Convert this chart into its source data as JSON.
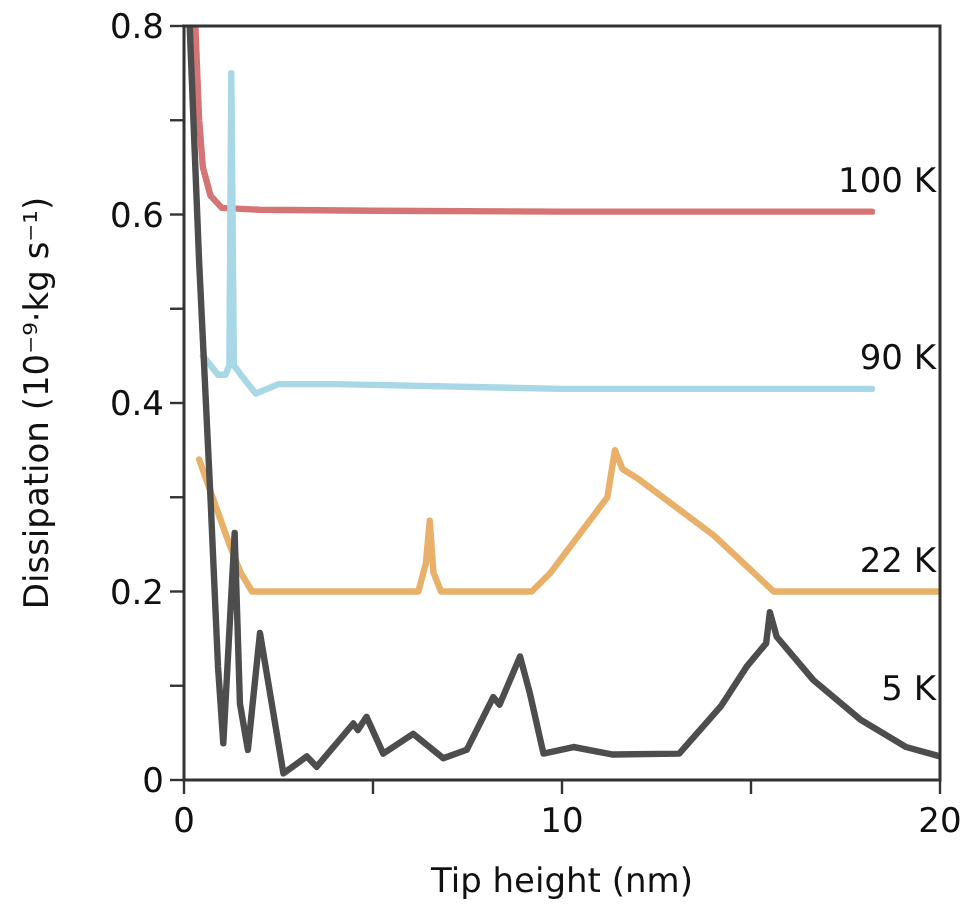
{
  "chart_data": {
    "type": "line",
    "xlabel": "Tip height (nm)",
    "ylabel": "Dissipation (10⁻⁹·kg s⁻¹)",
    "xlim": [
      0,
      20
    ],
    "xticks": [
      0,
      {
        "value": 5,
        "label": null
      },
      10,
      {
        "value": 15,
        "label": null
      },
      20
    ],
    "ylim": [
      0,
      0.8
    ],
    "yticks": [
      0,
      {
        "value": 0.1,
        "label": null
      },
      0.2,
      {
        "value": 0.3,
        "label": null
      },
      0.4,
      {
        "value": 0.5,
        "label": null
      },
      0.6,
      {
        "value": 0.7,
        "label": null
      },
      0.8
    ],
    "grid": false,
    "marker": "none",
    "line_style": "solid",
    "series": [
      {
        "name": "100 K",
        "color": "#d47474",
        "x": [
          0.3,
          0.4,
          0.5,
          0.7,
          1,
          2,
          5,
          10,
          18.2
        ],
        "values": [
          0.8,
          0.7,
          0.65,
          0.62,
          0.607,
          0.605,
          0.604,
          0.603,
          0.603
        ]
      },
      {
        "name": "90 K",
        "color": "#a8d8e6",
        "x": [
          0.5,
          0.7,
          0.9,
          1.1,
          1.2,
          1.25,
          1.32,
          1.5,
          1.9,
          2.5,
          4,
          10,
          18.2
        ],
        "values": [
          0.45,
          0.44,
          0.43,
          0.43,
          0.44,
          0.75,
          0.44,
          0.43,
          0.41,
          0.42,
          0.42,
          0.415,
          0.415
        ]
      },
      {
        "name": "22 K",
        "color": "#e8b068",
        "x": [
          0.4,
          1.2,
          1.5,
          1.8,
          6.2,
          6.4,
          6.5,
          6.6,
          6.8,
          9.2,
          9.7,
          11.2,
          11.4,
          11.6,
          12,
          14,
          15.6,
          20
        ],
        "values": [
          0.34,
          0.25,
          0.22,
          0.2,
          0.2,
          0.23,
          0.275,
          0.22,
          0.2,
          0.2,
          0.22,
          0.3,
          0.35,
          0.33,
          0.32,
          0.26,
          0.2,
          0.2
        ]
      },
      {
        "name": "5 K",
        "color": "#4d4d4d",
        "x": [
          0.15,
          0.4,
          0.7,
          0.9,
          1.04,
          1.34,
          1.48,
          1.69,
          2.01,
          2.63,
          3.25,
          3.51,
          4.48,
          4.6,
          4.83,
          5.27,
          6.06,
          6.86,
          7.48,
          8.18,
          8.35,
          8.89,
          9.15,
          9.51,
          10.3,
          11.35,
          13.1,
          14.2,
          14.88,
          15.4,
          15.5,
          15.68,
          16.65,
          17.9,
          19.1,
          20
        ],
        "values": [
          0.8,
          0.55,
          0.3,
          0.12,
          0.039,
          0.262,
          0.081,
          0.032,
          0.156,
          0.007,
          0.025,
          0.014,
          0.06,
          0.053,
          0.067,
          0.028,
          0.049,
          0.023,
          0.032,
          0.088,
          0.08,
          0.131,
          0.092,
          0.028,
          0.035,
          0.027,
          0.028,
          0.078,
          0.12,
          0.145,
          0.178,
          0.152,
          0.106,
          0.064,
          0.035,
          0.025
        ]
      }
    ]
  }
}
